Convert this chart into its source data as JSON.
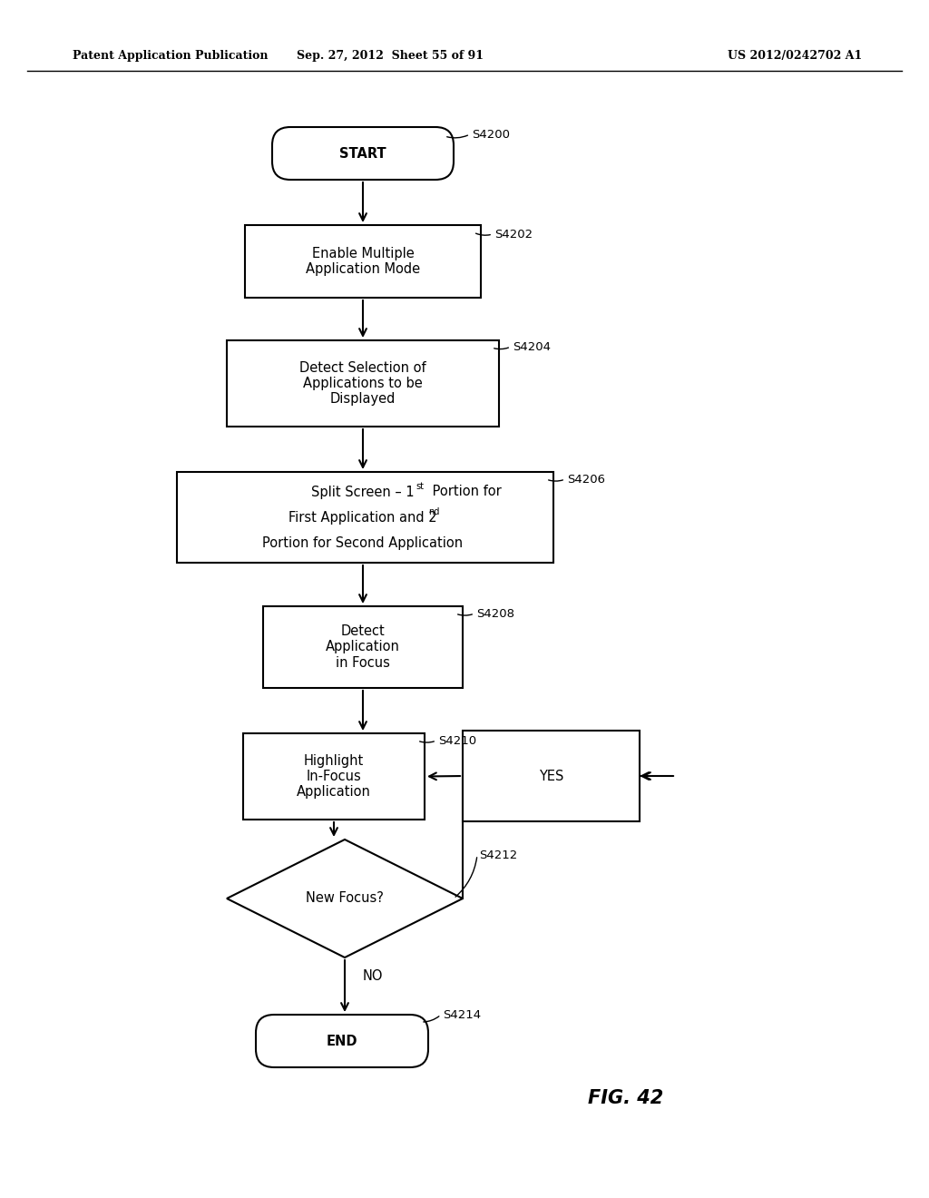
{
  "bg_color": "#ffffff",
  "header_left": "Patent Application Publication",
  "header_mid": "Sep. 27, 2012  Sheet 55 of 91",
  "header_right": "US 2012/0242702 A1",
  "fig_label": "FIG. 42",
  "font_size_node": 10.5,
  "font_size_step": 9.5,
  "font_size_header": 9,
  "font_size_fig": 15
}
